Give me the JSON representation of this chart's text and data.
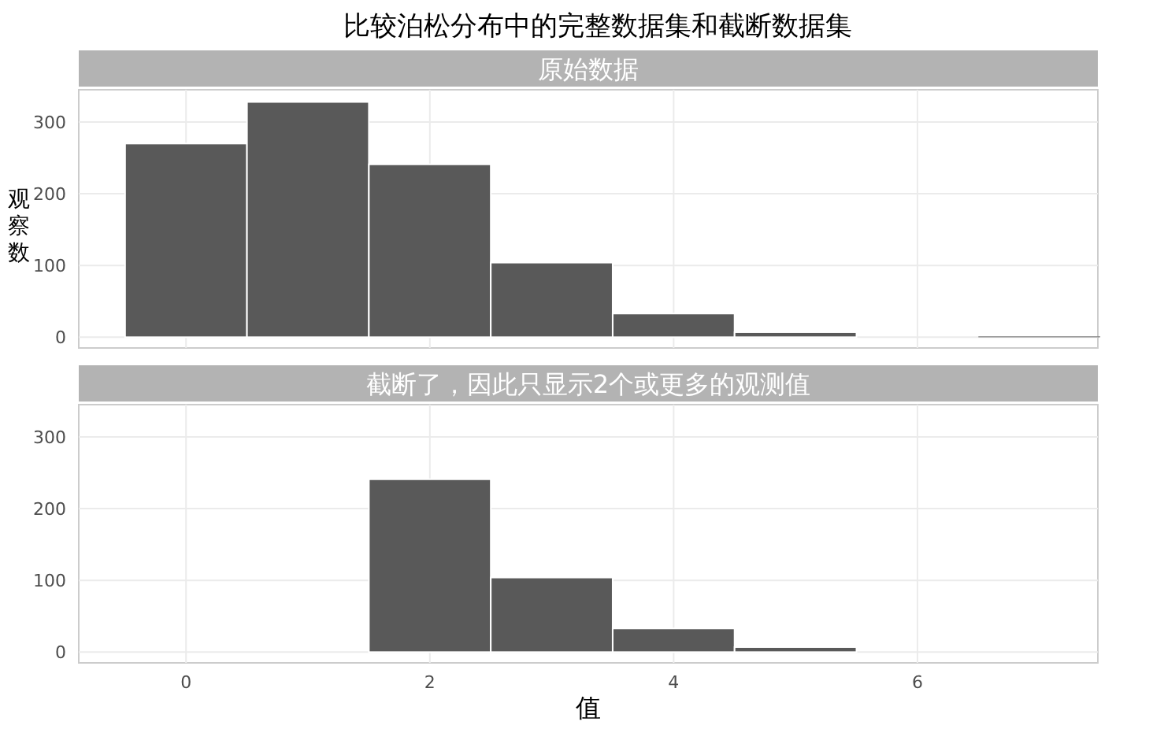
{
  "chart_data": [
    {
      "type": "histogram",
      "title": "比较泊松分布中的完整数据集和截断数据集",
      "subtitle": "原始数据",
      "ylabel": "观察数",
      "bins": [
        -0.5,
        0.5,
        1.5,
        2.5,
        3.5,
        4.5,
        5.5,
        6.5,
        7.5
      ],
      "values": [
        270,
        328,
        241,
        104,
        33,
        7,
        0,
        1
      ],
      "color": "#595959",
      "xlim": [
        -0.88,
        7.48
      ],
      "ylim": [
        -15,
        345
      ],
      "xticks": [
        0,
        2,
        4,
        6
      ],
      "yticks": [
        0,
        100,
        200,
        300
      ],
      "grid": true,
      "tick_labels": "y"
    },
    {
      "type": "histogram",
      "subtitle": "截断了，因此只显示2个或更多的观测值",
      "xlabel": "值",
      "bins": [
        1.5,
        2.5,
        3.5,
        4.5,
        5.5
      ],
      "values": [
        241,
        104,
        33,
        7
      ],
      "color": "#595959",
      "xlim": [
        -0.88,
        7.48
      ],
      "ylim": [
        -15,
        345
      ],
      "xticks": [
        0,
        2,
        4,
        6
      ],
      "yticks": [
        0,
        100,
        200,
        300
      ],
      "grid": true
    }
  ]
}
